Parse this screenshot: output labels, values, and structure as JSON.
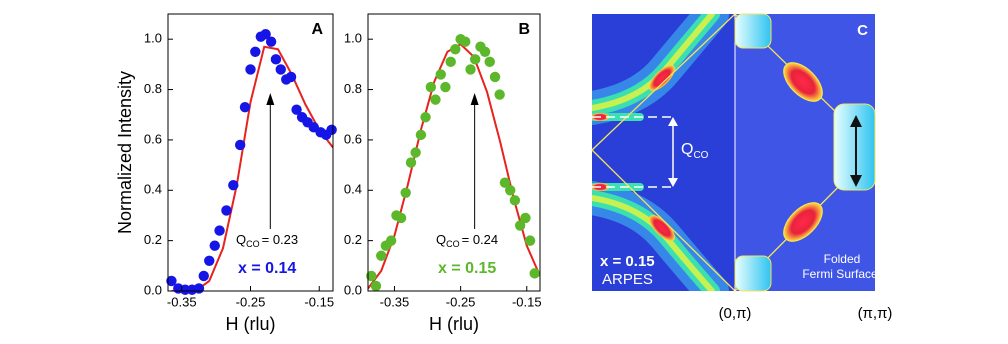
{
  "chart_data": [
    {
      "type": "scatter",
      "panel": "A",
      "ylabel": "Normalized Intensity",
      "xlabel": "H  (rlu)",
      "xlim": [
        -0.37,
        -0.13
      ],
      "ylim": [
        0,
        1.1
      ],
      "xticks": [
        -0.35,
        -0.25,
        -0.15
      ],
      "yticks": [
        {
          "value": 0,
          "label": "0.0"
        },
        0.2,
        0.4,
        0.6,
        0.8,
        {
          "value": 1,
          "label": "1.0"
        }
      ],
      "annotation": {
        "q": "Q",
        "sub": "CO",
        "value": "= 0.23"
      },
      "doping": "x = 0.14",
      "series": [
        {
          "color": "#1515e6",
          "x": [
            -0.365,
            -0.355,
            -0.345,
            -0.335,
            -0.325,
            -0.318,
            -0.31,
            -0.302,
            -0.295,
            -0.285,
            -0.275,
            -0.265,
            -0.258,
            -0.25,
            -0.243,
            -0.235,
            -0.228,
            -0.22,
            -0.213,
            -0.206,
            -0.198,
            -0.191,
            -0.183,
            -0.175,
            -0.167,
            -0.158,
            -0.148,
            -0.14,
            -0.132
          ],
          "values": [
            0.04,
            0.01,
            0.005,
            0.005,
            0.01,
            0.06,
            0.12,
            0.18,
            0.24,
            0.32,
            0.42,
            0.58,
            0.73,
            0.88,
            0.95,
            1.01,
            1.02,
            0.99,
            0.92,
            0.88,
            0.84,
            0.85,
            0.72,
            0.69,
            0.67,
            0.65,
            0.63,
            0.62,
            0.64
          ]
        }
      ],
      "fit": {
        "color": "#e8221e",
        "x": [
          -0.365,
          -0.33,
          -0.31,
          -0.29,
          -0.27,
          -0.25,
          -0.23,
          -0.21,
          -0.19,
          -0.17,
          -0.15,
          -0.13
        ],
        "values": [
          0,
          0,
          0.04,
          0.17,
          0.42,
          0.75,
          0.97,
          0.96,
          0.86,
          0.74,
          0.64,
          0.57
        ]
      }
    },
    {
      "type": "scatter",
      "panel": "B",
      "xlabel": "H  (rlu)",
      "xlim": [
        -0.39,
        -0.13
      ],
      "ylim": [
        0,
        1.1
      ],
      "xticks": [
        -0.35,
        -0.25,
        -0.15
      ],
      "yticks": [
        {
          "value": 0,
          "label": "0.0"
        },
        0.2,
        0.4,
        0.6,
        0.8,
        {
          "value": 1,
          "label": "1.0"
        }
      ],
      "annotation": {
        "q": "Q",
        "sub": "CO",
        "value": "= 0.24"
      },
      "doping": "x = 0.15",
      "series": [
        {
          "color": "#5cb82a",
          "x": [
            -0.385,
            -0.378,
            -0.37,
            -0.363,
            -0.355,
            -0.347,
            -0.34,
            -0.333,
            -0.325,
            -0.318,
            -0.31,
            -0.303,
            -0.295,
            -0.288,
            -0.28,
            -0.273,
            -0.265,
            -0.258,
            -0.25,
            -0.243,
            -0.235,
            -0.228,
            -0.22,
            -0.213,
            -0.206,
            -0.198,
            -0.191,
            -0.183,
            -0.175,
            -0.168,
            -0.16,
            -0.152,
            -0.145,
            -0.138
          ],
          "values": [
            0.06,
            0.02,
            0.14,
            0.18,
            0.2,
            0.3,
            0.29,
            0.39,
            0.51,
            0.55,
            0.62,
            0.69,
            0.81,
            0.76,
            0.86,
            0.81,
            0.91,
            0.96,
            1.0,
            0.99,
            0.88,
            0.92,
            0.97,
            0.95,
            0.91,
            0.85,
            0.78,
            0.43,
            0.4,
            0.36,
            0.26,
            0.29,
            0.2,
            0.07
          ]
        }
      ],
      "fit": {
        "color": "#e8221e",
        "x": [
          -0.39,
          -0.37,
          -0.35,
          -0.33,
          -0.31,
          -0.29,
          -0.27,
          -0.25,
          -0.23,
          -0.21,
          -0.19,
          -0.17,
          -0.15,
          -0.13
        ],
        "values": [
          0.01,
          0.08,
          0.22,
          0.42,
          0.64,
          0.83,
          0.95,
          0.98,
          0.93,
          0.79,
          0.59,
          0.37,
          0.18,
          0.06
        ]
      }
    }
  ],
  "diagram": {
    "panel": "C",
    "q": "Q",
    "sub": "CO",
    "doping": "x = 0.15",
    "method": "ARPES",
    "folded": "Folded",
    "fermi": "Fermi Surface",
    "left_label": "(0,π)",
    "right_label": "(π,π)"
  }
}
